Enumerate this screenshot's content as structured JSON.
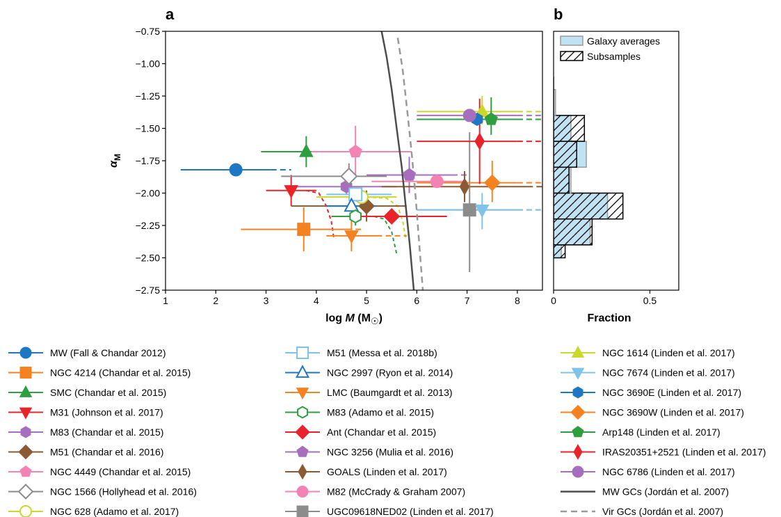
{
  "chart_data": [
    {
      "panel": "a",
      "type": "scatter",
      "xlabel_prefix": "log ",
      "xlabel_var": "M",
      "xlabel_unit": "(M",
      "xlabel_close": ")",
      "ylabel_var": "α",
      "ylabel_sub": "M",
      "xlim": [
        1,
        8.5
      ],
      "ylim": [
        -2.75,
        -0.75
      ],
      "xticks": [
        1,
        2,
        3,
        4,
        5,
        6,
        7,
        8
      ],
      "yticks": [
        -0.75,
        -1.0,
        -1.25,
        -1.5,
        -1.75,
        -2.0,
        -2.25,
        -2.5,
        -2.75
      ],
      "ytick_labels": [
        "−0.75",
        "−1.00",
        "−1.25",
        "−1.50",
        "−1.75",
        "−2.00",
        "−2.25",
        "−2.50",
        "−2.75"
      ],
      "series": [
        {
          "name": "MW (Fall & Chandar 2012)",
          "color": "#1f77c4",
          "marker": "circle",
          "filled": true,
          "x": 2.4,
          "y": -1.82,
          "xrange": [
            1.3,
            3.1
          ],
          "dash_to": 3.5,
          "yerr": 0
        },
        {
          "name": "NGC 4214 (Chandar et al. 2015)",
          "color": "#f58220",
          "marker": "square",
          "filled": true,
          "x": 3.75,
          "y": -2.28,
          "xrange": [
            2.5,
            4.6
          ],
          "dash_to": 4.9,
          "yerr": [
            0.17,
            0.17
          ]
        },
        {
          "name": "SMC (Chandar et al. 2015)",
          "color": "#2e9e3f",
          "marker": "triangle-up",
          "filled": true,
          "x": 3.8,
          "y": -1.68,
          "xrange": [
            2.9,
            4.6
          ],
          "dash_to": 4.6,
          "yerr": [
            0.12,
            0.12
          ]
        },
        {
          "name": "M31 (Johnson et al. 2017)",
          "color": "#e8232b",
          "marker": "triangle-down",
          "filled": true,
          "x": 3.5,
          "y": -1.98,
          "xrange": [
            3.0,
            4.0
          ],
          "dash_to": 4.0,
          "yerr": [
            0.12,
            0.12
          ]
        },
        {
          "name": "M83 (Chandar et al. 2015)",
          "color": "#a66fbd",
          "marker": "hexagon",
          "filled": true,
          "x": 4.6,
          "y": -1.95,
          "xrange": [
            3.6,
            5.6
          ],
          "dash_to": 5.6,
          "yerr": [
            0.06,
            0.06
          ]
        },
        {
          "name": "M51 (Chandar et al. 2016)",
          "color": "#8a5a34",
          "marker": "diamond",
          "filled": true,
          "x": 5.0,
          "y": -2.1,
          "xrange": [
            3.5,
            5.8
          ],
          "dash_to": 5.8,
          "yerr": [
            0.12,
            0.12
          ]
        },
        {
          "name": "NGC 4449 (Chandar et al. 2015)",
          "color": "#f283b3",
          "marker": "pentagon",
          "filled": true,
          "x": 4.78,
          "y": -1.68,
          "xrange": [
            3.9,
            5.9
          ],
          "dash_to": 5.9,
          "yerr": [
            0.2,
            0.2
          ]
        },
        {
          "name": "NGC 1566 (Hollyhead et al. 2016)",
          "color": "#8c8c8c",
          "marker": "diamond",
          "filled": false,
          "x": 4.65,
          "y": -1.87,
          "xrange": [
            3.3,
            5.4
          ],
          "dash_to": 5.4,
          "yerr": [
            0.1,
            0.1
          ]
        },
        {
          "name": "NGC 628 (Adamo et al. 2017)",
          "color": "#c9d82b",
          "marker": "circle",
          "filled": false,
          "x": 4.9,
          "y": -2.03,
          "xrange": [
            4.0,
            5.6
          ],
          "dash_to": 5.6,
          "yerr": 0
        },
        {
          "name": "M51 (Messa et al. 2018b)",
          "color": "#7ec4ea",
          "marker": "square",
          "filled": false,
          "x": 4.78,
          "y": -2.01,
          "xrange": [
            4.2,
            5.5
          ],
          "dash_to": 5.5,
          "yerr": 0
        },
        {
          "name": "NGC 2997 (Ryon et al. 2014)",
          "color": "#1f77c4",
          "marker": "triangle-up",
          "filled": false,
          "x": 4.7,
          "y": -2.1,
          "xrange": [
            4.2,
            5.2
          ],
          "dash_to": 5.2,
          "yerr": 0
        },
        {
          "name": "LMC (Baumgardt et al. 2013)",
          "color": "#f58220",
          "marker": "triangle-down",
          "filled": true,
          "x": 4.7,
          "y": -2.33,
          "xrange": [
            4.2,
            5.2
          ],
          "dash_to": 5.8,
          "yerr": [
            0.12,
            0.12
          ]
        },
        {
          "name": "M83 (Adamo et al. 2015)",
          "color": "#2e9e3f",
          "marker": "hexagon",
          "filled": false,
          "x": 4.78,
          "y": -2.18,
          "xrange": [
            4.3,
            5.4
          ],
          "dash_to": 5.4,
          "yerr": [
            0.07,
            0.07
          ]
        },
        {
          "name": "Ant (Chandar et al. 2015)",
          "color": "#e8232b",
          "marker": "diamond",
          "filled": true,
          "x": 5.5,
          "y": -2.18,
          "xrange": [
            4.7,
            6.6
          ],
          "dash_to": 6.6,
          "yerr": [
            0.04,
            0.04
          ]
        },
        {
          "name": "NGC 3256 (Mulia et al. 2016)",
          "color": "#a66fbd",
          "marker": "pentagon",
          "filled": true,
          "x": 5.85,
          "y": -1.86,
          "xrange": [
            5.0,
            6.7
          ],
          "dash_to": 7.0,
          "yerr": [
            0.14,
            0.14
          ]
        },
        {
          "name": "GOALS (Linden et al. 2017)",
          "color": "#8a5a34",
          "marker": "diamond-thin",
          "filled": true,
          "x": 6.95,
          "y": -1.95,
          "xrange": [
            5.3,
            8.2
          ],
          "dash_to": 8.5,
          "yerr": [
            0.12,
            0.12
          ]
        },
        {
          "name": "M82 (McCrady & Graham 2007)",
          "color": "#f283b3",
          "marker": "circle",
          "filled": true,
          "x": 6.4,
          "y": -1.91,
          "xrange": [
            5.1,
            7.0
          ],
          "dash_to": 7.0,
          "yerr": 0
        },
        {
          "name": "UGC09618NED02 (Linden et al. 2017)",
          "color": "#8c8c8c",
          "marker": "square",
          "filled": true,
          "x": 7.05,
          "y": -2.13,
          "xrange": [
            6.0,
            8.0
          ],
          "dash_to": 8.5,
          "yerr": [
            0.6,
            0.48
          ]
        },
        {
          "name": "NGC 1614 (Linden et al. 2017)",
          "color": "#c9d82b",
          "marker": "triangle-up",
          "filled": true,
          "x": 7.3,
          "y": -1.37,
          "xrange": [
            6.0,
            8.0
          ],
          "dash_to": 8.5,
          "yerr": [
            0.12,
            0.1
          ]
        },
        {
          "name": "NGC 7674 (Linden et al. 2017)",
          "color": "#7ec4ea",
          "marker": "triangle-down",
          "filled": true,
          "x": 7.3,
          "y": -2.13,
          "xrange": [
            6.0,
            8.0
          ],
          "dash_to": 8.5,
          "yerr": [
            0.13,
            0.15
          ]
        },
        {
          "name": "NGC 3690E (Linden et al. 2017)",
          "color": "#1f77c4",
          "marker": "hexagon",
          "filled": true,
          "x": 7.2,
          "y": -1.43,
          "xrange": [
            6.0,
            8.0
          ],
          "dash_to": 8.5,
          "yerr": 0
        },
        {
          "name": "NGC 3690W (Linden et al. 2017)",
          "color": "#f58220",
          "marker": "diamond",
          "filled": true,
          "x": 7.5,
          "y": -1.92,
          "xrange": [
            6.0,
            8.0
          ],
          "dash_to": 8.5,
          "yerr": [
            0.17,
            0.15
          ]
        },
        {
          "name": "Arp148 (Linden et al. 2017)",
          "color": "#2e9e3f",
          "marker": "pentagon",
          "filled": true,
          "x": 7.48,
          "y": -1.43,
          "xrange": [
            6.0,
            8.0
          ],
          "dash_to": 8.5,
          "yerr": [
            0.17,
            0.12
          ]
        },
        {
          "name": "IRAS20351+2521 (Linden et al. 2017)",
          "color": "#e8232b",
          "marker": "diamond-thin",
          "filled": true,
          "x": 7.25,
          "y": -1.6,
          "xrange": [
            6.0,
            8.0
          ],
          "dash_to": 8.5,
          "yerr": [
            0.33,
            0.33
          ]
        },
        {
          "name": "NGC 6786 (Linden et al. 2017)",
          "color": "#a66fbd",
          "marker": "circle",
          "filled": true,
          "x": 7.05,
          "y": -1.4,
          "xrange": [
            6.0,
            8.0
          ],
          "dash_to": 8.5,
          "yerr": 0
        },
        {
          "name": "MW GCs (Jordán et al. 2007)",
          "color": "#4d4d4d",
          "marker": "line",
          "dashed": false,
          "curve": [
            [
              5.3,
              -0.75
            ],
            [
              5.4,
              -0.95
            ],
            [
              5.5,
              -1.2
            ],
            [
              5.6,
              -1.5
            ],
            [
              5.7,
              -1.8
            ],
            [
              5.78,
              -2.1
            ],
            [
              5.86,
              -2.4
            ],
            [
              5.94,
              -2.75
            ]
          ]
        },
        {
          "name": "Vir GCs (Jordán et al. 2007)",
          "color": "#999999",
          "marker": "line",
          "dashed": true,
          "curve": [
            [
              5.62,
              -0.8
            ],
            [
              5.72,
              -1.05
            ],
            [
              5.82,
              -1.4
            ],
            [
              5.9,
              -1.7
            ],
            [
              5.97,
              -2.0
            ],
            [
              6.03,
              -2.3
            ],
            [
              6.08,
              -2.55
            ],
            [
              6.12,
              -2.75
            ]
          ]
        }
      ],
      "cutoff_curves": [
        {
          "color": "#e8232b",
          "points": [
            [
              3.8,
              -1.98
            ],
            [
              4.05,
              -2.0
            ],
            [
              4.2,
              -2.1
            ],
            [
              4.3,
              -2.22
            ],
            [
              4.35,
              -2.35
            ]
          ]
        },
        {
          "color": "#2e9e3f",
          "points": [
            [
              5.15,
              -2.18
            ],
            [
              5.35,
              -2.2
            ],
            [
              5.5,
              -2.3
            ],
            [
              5.6,
              -2.47
            ]
          ]
        },
        {
          "color": "#c9d82b",
          "points": [
            [
              5.0,
              -2.03
            ],
            [
              5.4,
              -2.04
            ],
            [
              5.62,
              -2.1
            ],
            [
              5.72,
              -2.22
            ],
            [
              5.78,
              -2.35
            ]
          ]
        }
      ]
    },
    {
      "panel": "b",
      "type": "bar",
      "xlabel": "Fraction",
      "xlim": [
        0,
        0.65
      ],
      "xticks": [
        0,
        0.5
      ],
      "xtick_labels": [
        "0",
        "0.5"
      ],
      "ylim": [
        -2.75,
        -0.75
      ],
      "bins": [
        [
          -2.5,
          -2.4
        ],
        [
          -2.4,
          -2.2
        ],
        [
          -2.2,
          -2.0
        ],
        [
          -2.0,
          -1.8
        ],
        [
          -1.8,
          -1.6
        ],
        [
          -1.6,
          -1.4
        ],
        [
          -1.4,
          -1.2
        ],
        [
          -1.2,
          -1.0
        ]
      ],
      "series": [
        {
          "name": "Galaxy averages",
          "values": [
            0.04,
            0.19,
            0.28,
            0.09,
            0.17,
            0.09,
            0.01,
            0.0
          ],
          "color": "#bfe3f5"
        },
        {
          "name": "Subsamples",
          "values": [
            0.06,
            0.2,
            0.36,
            0.08,
            0.12,
            0.16,
            0.0,
            0.0
          ],
          "hatched": true
        }
      ],
      "legend_position": "top-right"
    }
  ]
}
